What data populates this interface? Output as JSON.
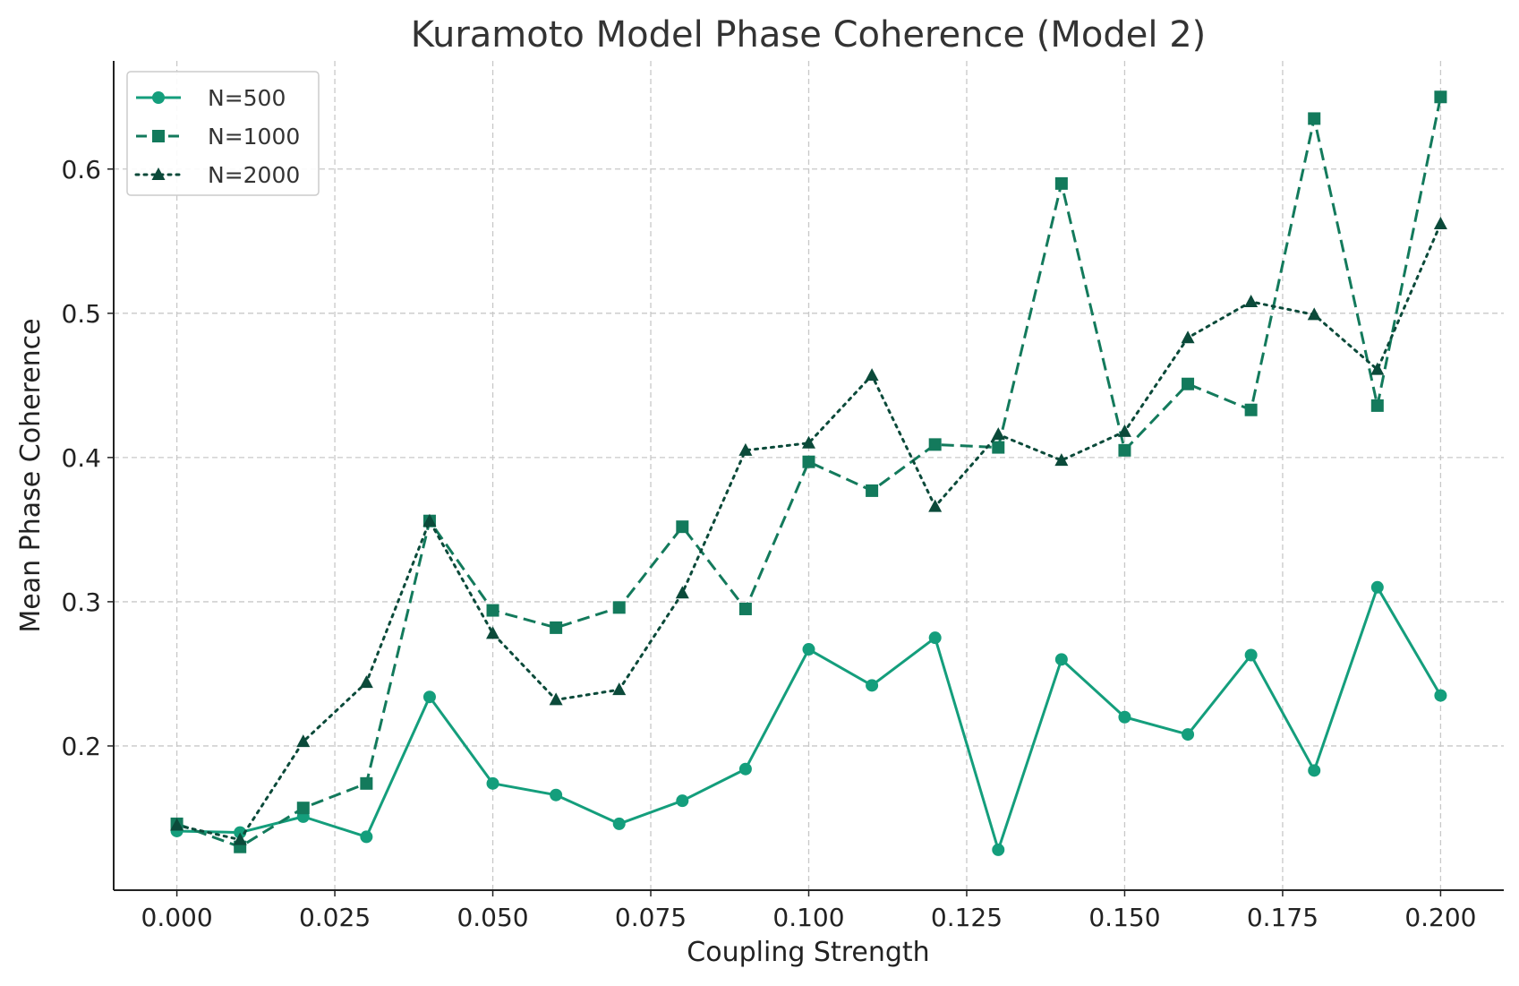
{
  "chart_data": {
    "type": "line",
    "title": "Kuramoto Model Phase Coherence (Model 2)",
    "xlabel": "Coupling Strength",
    "ylabel": "Mean Phase Coherence",
    "xlim": [
      -0.01,
      0.21
    ],
    "ylim": [
      0.1,
      0.675
    ],
    "xticks": [
      0.0,
      0.025,
      0.05,
      0.075,
      0.1,
      0.125,
      0.15,
      0.175,
      0.2
    ],
    "xtick_labels": [
      "0.000",
      "0.025",
      "0.050",
      "0.075",
      "0.100",
      "0.125",
      "0.150",
      "0.175",
      "0.200"
    ],
    "yticks": [
      0.2,
      0.3,
      0.4,
      0.5,
      0.6
    ],
    "ytick_labels": [
      "0.2",
      "0.3",
      "0.4",
      "0.5",
      "0.6"
    ],
    "grid": true,
    "legend_position": "top-left",
    "x": [
      0.0,
      0.01,
      0.02,
      0.03,
      0.04,
      0.05,
      0.06,
      0.07,
      0.08,
      0.09,
      0.1,
      0.11,
      0.12,
      0.13,
      0.14,
      0.15,
      0.16,
      0.17,
      0.18,
      0.19,
      0.2
    ],
    "series": [
      {
        "name": "N=500",
        "color": "#149e7c",
        "line_style": "solid",
        "marker": "circle",
        "values": [
          0.141,
          0.14,
          0.151,
          0.137,
          0.234,
          0.174,
          0.166,
          0.146,
          0.162,
          0.184,
          0.267,
          0.242,
          0.275,
          0.128,
          0.26,
          0.22,
          0.208,
          0.263,
          0.183,
          0.31,
          0.235
        ]
      },
      {
        "name": "N=1000",
        "color": "#137a5c",
        "line_style": "dashed",
        "marker": "square",
        "values": [
          0.146,
          0.13,
          0.157,
          0.174,
          0.356,
          0.294,
          0.282,
          0.296,
          0.352,
          0.295,
          0.397,
          0.377,
          0.409,
          0.407,
          0.59,
          0.405,
          0.451,
          0.433,
          0.635,
          0.436,
          0.65
        ]
      },
      {
        "name": "N=2000",
        "color": "#0b4a3a",
        "line_style": "dotted",
        "marker": "triangle",
        "values": [
          0.145,
          0.135,
          0.203,
          0.244,
          0.356,
          0.278,
          0.232,
          0.239,
          0.306,
          0.405,
          0.41,
          0.457,
          0.366,
          0.416,
          0.398,
          0.418,
          0.483,
          0.508,
          0.499,
          0.461,
          0.562
        ]
      }
    ]
  }
}
